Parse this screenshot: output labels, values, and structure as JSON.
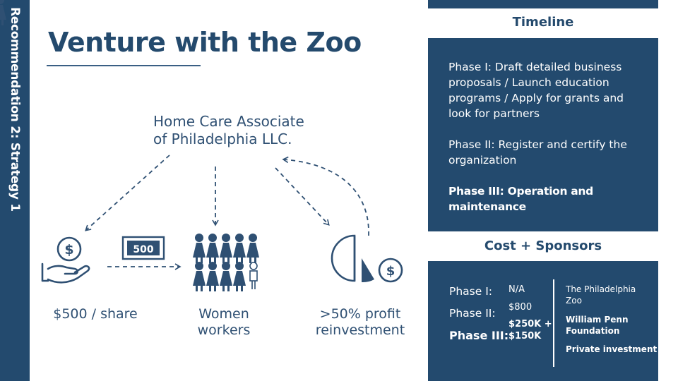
{
  "sidebar": {
    "vertical_label": "Recommendation 2: Strategy 1"
  },
  "slide": {
    "title": "Venture with the Zoo"
  },
  "diagram": {
    "company_line1": "Home Care Associate",
    "company_line2": "of Philadelphia  LLC.",
    "banknote_value": "500",
    "share_caption": "$500 / share",
    "women_caption_line1": "Women",
    "women_caption_line2": "workers",
    "profit_caption_line1": ">50% profit",
    "profit_caption_line2": "reinvestment"
  },
  "timeline": {
    "header": "Timeline",
    "phases": [
      "Phase I: Draft detailed business proposals / Launch education programs / Apply for grants and look for partners",
      "Phase II: Register and certify the organization",
      "Phase III: Operation and maintenance"
    ]
  },
  "cost": {
    "header": "Cost + Sponsors",
    "rows": [
      {
        "label": "Phase I:",
        "cost": "N/A"
      },
      {
        "label": "Phase II:",
        "cost": "$800"
      },
      {
        "label": "Phase III:",
        "cost": "$250K + $150K"
      }
    ],
    "sponsors": [
      "The Philadelphia Zoo",
      "William Penn Foundation",
      "Private investment"
    ]
  },
  "colors": {
    "navy": "#234a6e",
    "text": "#2f5073",
    "white": "#ffffff"
  }
}
